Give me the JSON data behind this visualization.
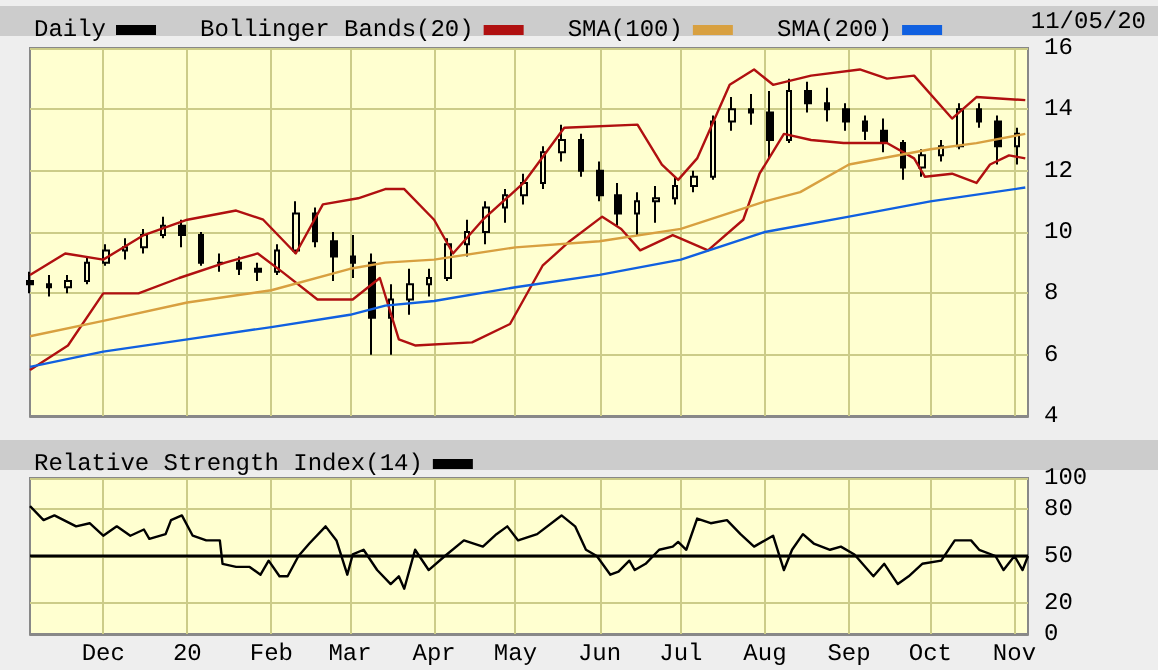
{
  "chart_data": [
    {
      "type": "candlestick",
      "annotations": [
        "11/05/20"
      ],
      "legend": "top left",
      "grid": true,
      "tick_labels": "y",
      "marker": "none",
      "ylim": [
        4,
        16
      ],
      "yticks": [
        4,
        6,
        8,
        10,
        12,
        14,
        16
      ],
      "xlim": [
        "2019-11-04",
        "2020-11-06"
      ],
      "xticks": [
        {
          "value": "2019-12-01",
          "label": null
        },
        {
          "value": "2020-01-01",
          "label": null
        },
        {
          "value": "2020-02-01",
          "label": null
        },
        {
          "value": "2020-03-01",
          "label": null
        },
        {
          "value": "2020-04-01",
          "label": null
        },
        {
          "value": "2020-05-01",
          "label": null
        },
        {
          "value": "2020-06-01",
          "label": null
        },
        {
          "value": "2020-07-01",
          "label": null
        },
        {
          "value": "2020-08-01",
          "label": null
        },
        {
          "value": "2020-09-01",
          "label": null
        },
        {
          "value": "2020-10-01",
          "label": null
        },
        {
          "value": "2020-11-01",
          "label": null
        }
      ],
      "series": [
        {
          "name": "Daily",
          "color": "#000000",
          "x": [
            "2019-11-04",
            "2019-11-11",
            "2019-11-18",
            "2019-11-25",
            "2019-12-02",
            "2019-12-09",
            "2019-12-16",
            "2019-12-23",
            "2019-12-30",
            "2020-01-06",
            "2020-01-13",
            "2020-01-20",
            "2020-01-27",
            "2020-02-03",
            "2020-02-10",
            "2020-02-17",
            "2020-02-24",
            "2020-03-02",
            "2020-03-09",
            "2020-03-16",
            "2020-03-23",
            "2020-03-30",
            "2020-04-06",
            "2020-04-13",
            "2020-04-20",
            "2020-04-27",
            "2020-05-04",
            "2020-05-11",
            "2020-05-18",
            "2020-05-25",
            "2020-06-01",
            "2020-06-08",
            "2020-06-15",
            "2020-06-22",
            "2020-06-29",
            "2020-07-06",
            "2020-07-13",
            "2020-07-20",
            "2020-07-27",
            "2020-08-03",
            "2020-08-10",
            "2020-08-17",
            "2020-08-24",
            "2020-08-31",
            "2020-09-07",
            "2020-09-14",
            "2020-09-21",
            "2020-09-28",
            "2020-10-05",
            "2020-10-12",
            "2020-10-19",
            "2020-10-26",
            "2020-11-02"
          ],
          "ohlc": [
            [
              8.4,
              8.7,
              8.0,
              8.3
            ],
            [
              8.3,
              8.6,
              7.9,
              8.2
            ],
            [
              8.2,
              8.6,
              8.0,
              8.4
            ],
            [
              8.4,
              9.2,
              8.3,
              9.0
            ],
            [
              9.0,
              9.6,
              8.9,
              9.4
            ],
            [
              9.4,
              9.8,
              9.1,
              9.5
            ],
            [
              9.5,
              10.1,
              9.3,
              9.9
            ],
            [
              9.9,
              10.5,
              9.8,
              10.2
            ],
            [
              10.2,
              10.4,
              9.5,
              9.9
            ],
            [
              9.9,
              10.0,
              8.9,
              9.0
            ],
            [
              9.0,
              9.3,
              8.7,
              9.0
            ],
            [
              9.0,
              9.2,
              8.6,
              8.8
            ],
            [
              8.8,
              9.0,
              8.4,
              8.7
            ],
            [
              8.7,
              9.6,
              8.6,
              9.4
            ],
            [
              9.4,
              11.0,
              9.3,
              10.6
            ],
            [
              10.6,
              10.8,
              9.5,
              9.7
            ],
            [
              9.7,
              10.0,
              8.4,
              9.2
            ],
            [
              9.2,
              9.9,
              8.5,
              9.0
            ],
            [
              9.0,
              9.3,
              6.0,
              7.2
            ],
            [
              7.2,
              8.3,
              6.0,
              7.8
            ],
            [
              7.8,
              8.8,
              7.3,
              8.3
            ],
            [
              8.3,
              8.8,
              7.9,
              8.5
            ],
            [
              8.5,
              9.8,
              8.4,
              9.6
            ],
            [
              9.6,
              10.4,
              9.2,
              10.0
            ],
            [
              10.0,
              11.0,
              9.6,
              10.8
            ],
            [
              10.8,
              11.4,
              10.3,
              11.2
            ],
            [
              11.2,
              11.9,
              10.9,
              11.6
            ],
            [
              11.6,
              12.8,
              11.4,
              12.6
            ],
            [
              12.6,
              13.5,
              12.3,
              13.0
            ],
            [
              13.0,
              13.2,
              11.8,
              12.0
            ],
            [
              12.0,
              12.3,
              11.0,
              11.2
            ],
            [
              11.2,
              11.6,
              10.2,
              10.6
            ],
            [
              10.6,
              11.3,
              9.9,
              11.0
            ],
            [
              11.0,
              11.5,
              10.3,
              11.1
            ],
            [
              11.1,
              11.8,
              10.9,
              11.5
            ],
            [
              11.5,
              12.0,
              11.3,
              11.8
            ],
            [
              11.8,
              13.8,
              11.7,
              13.6
            ],
            [
              13.6,
              14.4,
              13.3,
              14.0
            ],
            [
              14.0,
              14.5,
              13.5,
              13.9
            ],
            [
              13.9,
              14.6,
              12.4,
              13.0
            ],
            [
              13.0,
              15.0,
              12.9,
              14.6
            ],
            [
              14.6,
              14.9,
              13.9,
              14.2
            ],
            [
              14.2,
              14.7,
              13.6,
              14.0
            ],
            [
              14.0,
              14.2,
              13.3,
              13.6
            ],
            [
              13.6,
              13.8,
              13.0,
              13.3
            ],
            [
              13.3,
              13.7,
              12.6,
              12.9
            ],
            [
              12.9,
              13.0,
              11.7,
              12.1
            ],
            [
              12.1,
              12.7,
              11.8,
              12.5
            ],
            [
              12.5,
              13.0,
              12.3,
              12.8
            ],
            [
              12.8,
              14.2,
              12.7,
              14.0
            ],
            [
              14.0,
              14.2,
              13.4,
              13.6
            ],
            [
              13.6,
              13.8,
              12.2,
              12.8
            ],
            [
              12.8,
              13.4,
              12.2,
              13.2
            ]
          ]
        },
        {
          "type": "line",
          "name": "Bollinger Bands(20)",
          "color": "#b01010",
          "x": [
            "2019-11-04",
            "2019-11-17",
            "2019-12-01",
            "2019-12-16",
            "2020-01-01",
            "2020-01-19",
            "2020-01-29",
            "2020-02-10",
            "2020-02-20",
            "2020-03-04",
            "2020-03-14",
            "2020-03-21",
            "2020-04-01",
            "2020-04-08",
            "2020-04-19",
            "2020-05-04",
            "2020-05-19",
            "2020-06-15",
            "2020-06-24",
            "2020-06-30",
            "2020-07-07",
            "2020-07-19",
            "2020-07-28",
            "2020-08-04",
            "2020-08-18",
            "2020-09-05",
            "2020-09-15",
            "2020-09-25",
            "2020-10-09",
            "2020-10-18",
            "2020-11-05"
          ],
          "values": [
            8.6,
            9.3,
            9.1,
            9.9,
            10.4,
            10.7,
            10.4,
            9.3,
            10.9,
            11.1,
            11.4,
            11.4,
            10.4,
            9.3,
            10.4,
            11.6,
            13.4,
            13.5,
            12.2,
            11.7,
            12.4,
            14.8,
            15.3,
            14.8,
            15.1,
            15.3,
            15.0,
            15.1,
            13.7,
            14.4,
            14.3
          ]
        },
        {
          "type": "line",
          "color": "#b01010",
          "x": [
            "2019-11-04",
            "2019-11-18",
            "2019-12-01",
            "2019-12-14",
            "2019-12-29",
            "2020-01-15",
            "2020-01-27",
            "2020-02-05",
            "2020-02-18",
            "2020-03-02",
            "2020-03-12",
            "2020-03-19",
            "2020-03-25",
            "2020-04-15",
            "2020-04-29",
            "2020-05-11",
            "2020-05-21",
            "2020-06-02",
            "2020-06-09",
            "2020-06-16",
            "2020-06-28",
            "2020-07-11",
            "2020-07-24",
            "2020-07-30",
            "2020-08-08",
            "2020-08-18",
            "2020-08-30",
            "2020-09-15",
            "2020-09-25",
            "2020-09-29",
            "2020-10-09",
            "2020-10-18",
            "2020-10-23",
            "2020-10-30",
            "2020-11-05"
          ],
          "values": [
            5.5,
            6.3,
            8.0,
            8.0,
            8.5,
            9.0,
            9.3,
            8.7,
            7.8,
            7.8,
            8.5,
            6.5,
            6.3,
            6.4,
            7.0,
            8.9,
            9.7,
            10.5,
            10.1,
            9.4,
            9.9,
            9.4,
            10.4,
            11.9,
            13.2,
            13.0,
            12.9,
            12.9,
            12.4,
            11.8,
            11.9,
            11.6,
            12.2,
            12.5,
            12.4
          ]
        },
        {
          "type": "line",
          "name": "SMA(100)",
          "color": "#d8a040",
          "x": [
            "2019-11-04",
            "2019-12-01",
            "2020-01-01",
            "2020-02-01",
            "2020-03-01",
            "2020-03-14",
            "2020-04-01",
            "2020-05-01",
            "2020-06-01",
            "2020-07-01",
            "2020-08-01",
            "2020-08-14",
            "2020-09-01",
            "2020-10-01",
            "2020-10-18",
            "2020-11-05"
          ],
          "values": [
            6.6,
            7.1,
            7.7,
            8.1,
            8.8,
            9.0,
            9.1,
            9.5,
            9.7,
            10.1,
            11.0,
            11.3,
            12.2,
            12.7,
            12.9,
            13.2
          ]
        },
        {
          "type": "line",
          "name": "SMA(200)",
          "color": "#1060e0",
          "x": [
            "2019-11-04",
            "2019-12-01",
            "2020-01-01",
            "2020-02-01",
            "2020-03-01",
            "2020-03-14",
            "2020-04-01",
            "2020-05-01",
            "2020-06-01",
            "2020-07-01",
            "2020-08-01",
            "2020-09-01",
            "2020-10-01",
            "2020-11-05"
          ],
          "values": [
            5.6,
            6.1,
            6.5,
            6.9,
            7.3,
            7.6,
            7.75,
            8.2,
            8.6,
            9.1,
            10.0,
            10.5,
            11.0,
            11.45
          ]
        }
      ]
    },
    {
      "type": "line",
      "legend": "top left",
      "grid": true,
      "marker": "none",
      "ylim": [
        0,
        100
      ],
      "yticks": [
        0,
        20,
        50,
        80,
        100
      ],
      "xlim": [
        "2019-11-04",
        "2020-11-06"
      ],
      "xticks": [
        {
          "value": "2019-12-01",
          "label": "Dec"
        },
        {
          "value": "2020-01-01",
          "label": "20"
        },
        {
          "value": "2020-02-01",
          "label": "Feb"
        },
        {
          "value": "2020-03-01",
          "label": "Mar"
        },
        {
          "value": "2020-04-01",
          "label": "Apr"
        },
        {
          "value": "2020-05-01",
          "label": "May"
        },
        {
          "value": "2020-06-01",
          "label": "Jun"
        },
        {
          "value": "2020-07-01",
          "label": "Jul"
        },
        {
          "value": "2020-08-01",
          "label": "Aug"
        },
        {
          "value": "2020-09-01",
          "label": "Sep"
        },
        {
          "value": "2020-10-01",
          "label": "Oct"
        },
        {
          "value": "2020-11-01",
          "label": "Nov"
        }
      ],
      "ref_lines": [
        {
          "axis": "y",
          "value": 50,
          "color": "#000000"
        }
      ],
      "series": [
        {
          "name": "Relative Strength Index(14)",
          "color": "#000000",
          "x": [
            "2019-11-04",
            "2019-11-09",
            "2019-11-13",
            "2019-11-21",
            "2019-11-26",
            "2019-12-01",
            "2019-12-06",
            "2019-12-11",
            "2019-12-16",
            "2019-12-18",
            "2019-12-24",
            "2019-12-26",
            "2019-12-30",
            "2020-01-03",
            "2020-01-08",
            "2020-01-13",
            "2020-01-14",
            "2020-01-19",
            "2020-01-24",
            "2020-01-28",
            "2020-01-31",
            "2020-02-04",
            "2020-02-07",
            "2020-02-11",
            "2020-02-15",
            "2020-02-21",
            "2020-02-25",
            "2020-02-29",
            "2020-03-02",
            "2020-03-06",
            "2020-03-11",
            "2020-03-16",
            "2020-03-19",
            "2020-03-21",
            "2020-03-25",
            "2020-03-30",
            "2020-04-05",
            "2020-04-12",
            "2020-04-19",
            "2020-04-24",
            "2020-04-28",
            "2020-05-02",
            "2020-05-09",
            "2020-05-18",
            "2020-05-23",
            "2020-05-27",
            "2020-05-31",
            "2020-06-05",
            "2020-06-08",
            "2020-06-12",
            "2020-06-14",
            "2020-06-18",
            "2020-06-23",
            "2020-06-28",
            "2020-06-30",
            "2020-07-03",
            "2020-07-07",
            "2020-07-12",
            "2020-07-18",
            "2020-07-23",
            "2020-07-28",
            "2020-08-04",
            "2020-08-08",
            "2020-08-11",
            "2020-08-15",
            "2020-08-19",
            "2020-08-25",
            "2020-08-29",
            "2020-09-03",
            "2020-09-10",
            "2020-09-14",
            "2020-09-19",
            "2020-09-23",
            "2020-09-28",
            "2020-10-05",
            "2020-10-10",
            "2020-10-16",
            "2020-10-19",
            "2020-10-25",
            "2020-10-28",
            "2020-11-01",
            "2020-11-04",
            "2020-11-06"
          ],
          "values": [
            82,
            73,
            76,
            69,
            71,
            63,
            69,
            63,
            67,
            61,
            64,
            73,
            76,
            63,
            60,
            60,
            45,
            43,
            43,
            38,
            47,
            37,
            37,
            50,
            58,
            69,
            60,
            38,
            51,
            54,
            41,
            32,
            37,
            29,
            54,
            41,
            50,
            60,
            56,
            64,
            69,
            60,
            64,
            76,
            69,
            54,
            50,
            38,
            40,
            47,
            41,
            45,
            54,
            56,
            59,
            54,
            74,
            71,
            73,
            64,
            56,
            63,
            41,
            54,
            64,
            58,
            54,
            56,
            51,
            37,
            45,
            32,
            37,
            45,
            47,
            60,
            60,
            54,
            50,
            41,
            50,
            41,
            50
          ]
        }
      ]
    }
  ]
}
